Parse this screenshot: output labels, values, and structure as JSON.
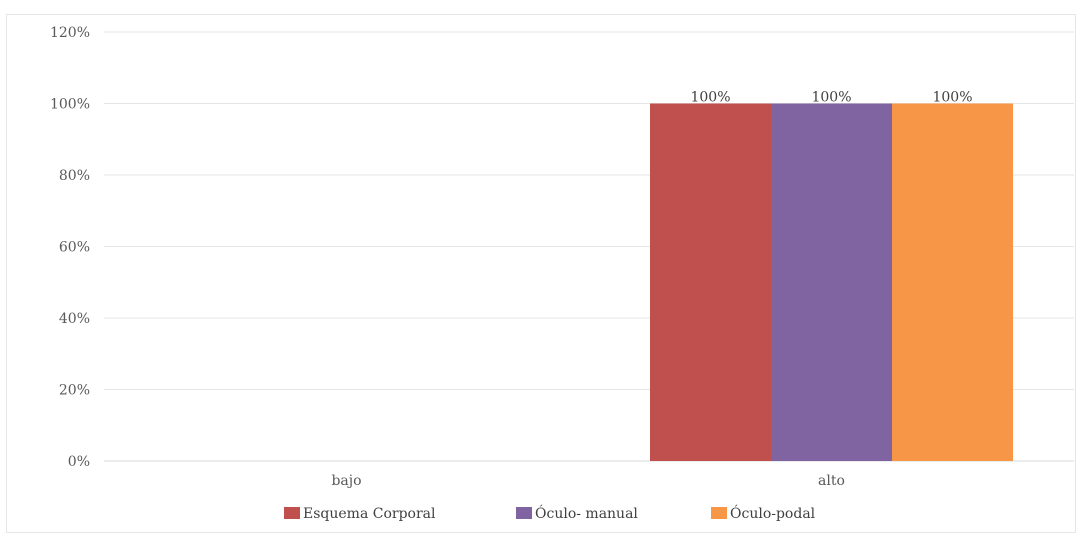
{
  "chart_data": {
    "type": "bar",
    "categories": [
      "bajo",
      "alto"
    ],
    "series": [
      {
        "name": "Esquema Corporal",
        "values": [
          0,
          100
        ],
        "color": "#c0504d"
      },
      {
        "name": "Óculo- manual",
        "values": [
          0,
          100
        ],
        "color": "#8064a2"
      },
      {
        "name": "Óculo-podal",
        "values": [
          0,
          100
        ],
        "color": "#f79646"
      }
    ],
    "data_labels": [
      null,
      "100%"
    ],
    "ylim": [
      0,
      120
    ],
    "yticks": [
      "0%",
      "20%",
      "40%",
      "60%",
      "80%",
      "100%",
      "120%"
    ],
    "ytick_values": [
      0,
      20,
      40,
      60,
      80,
      100,
      120
    ],
    "grid": true,
    "legend": "bottom",
    "title": "",
    "xlabel": "",
    "ylabel": ""
  }
}
